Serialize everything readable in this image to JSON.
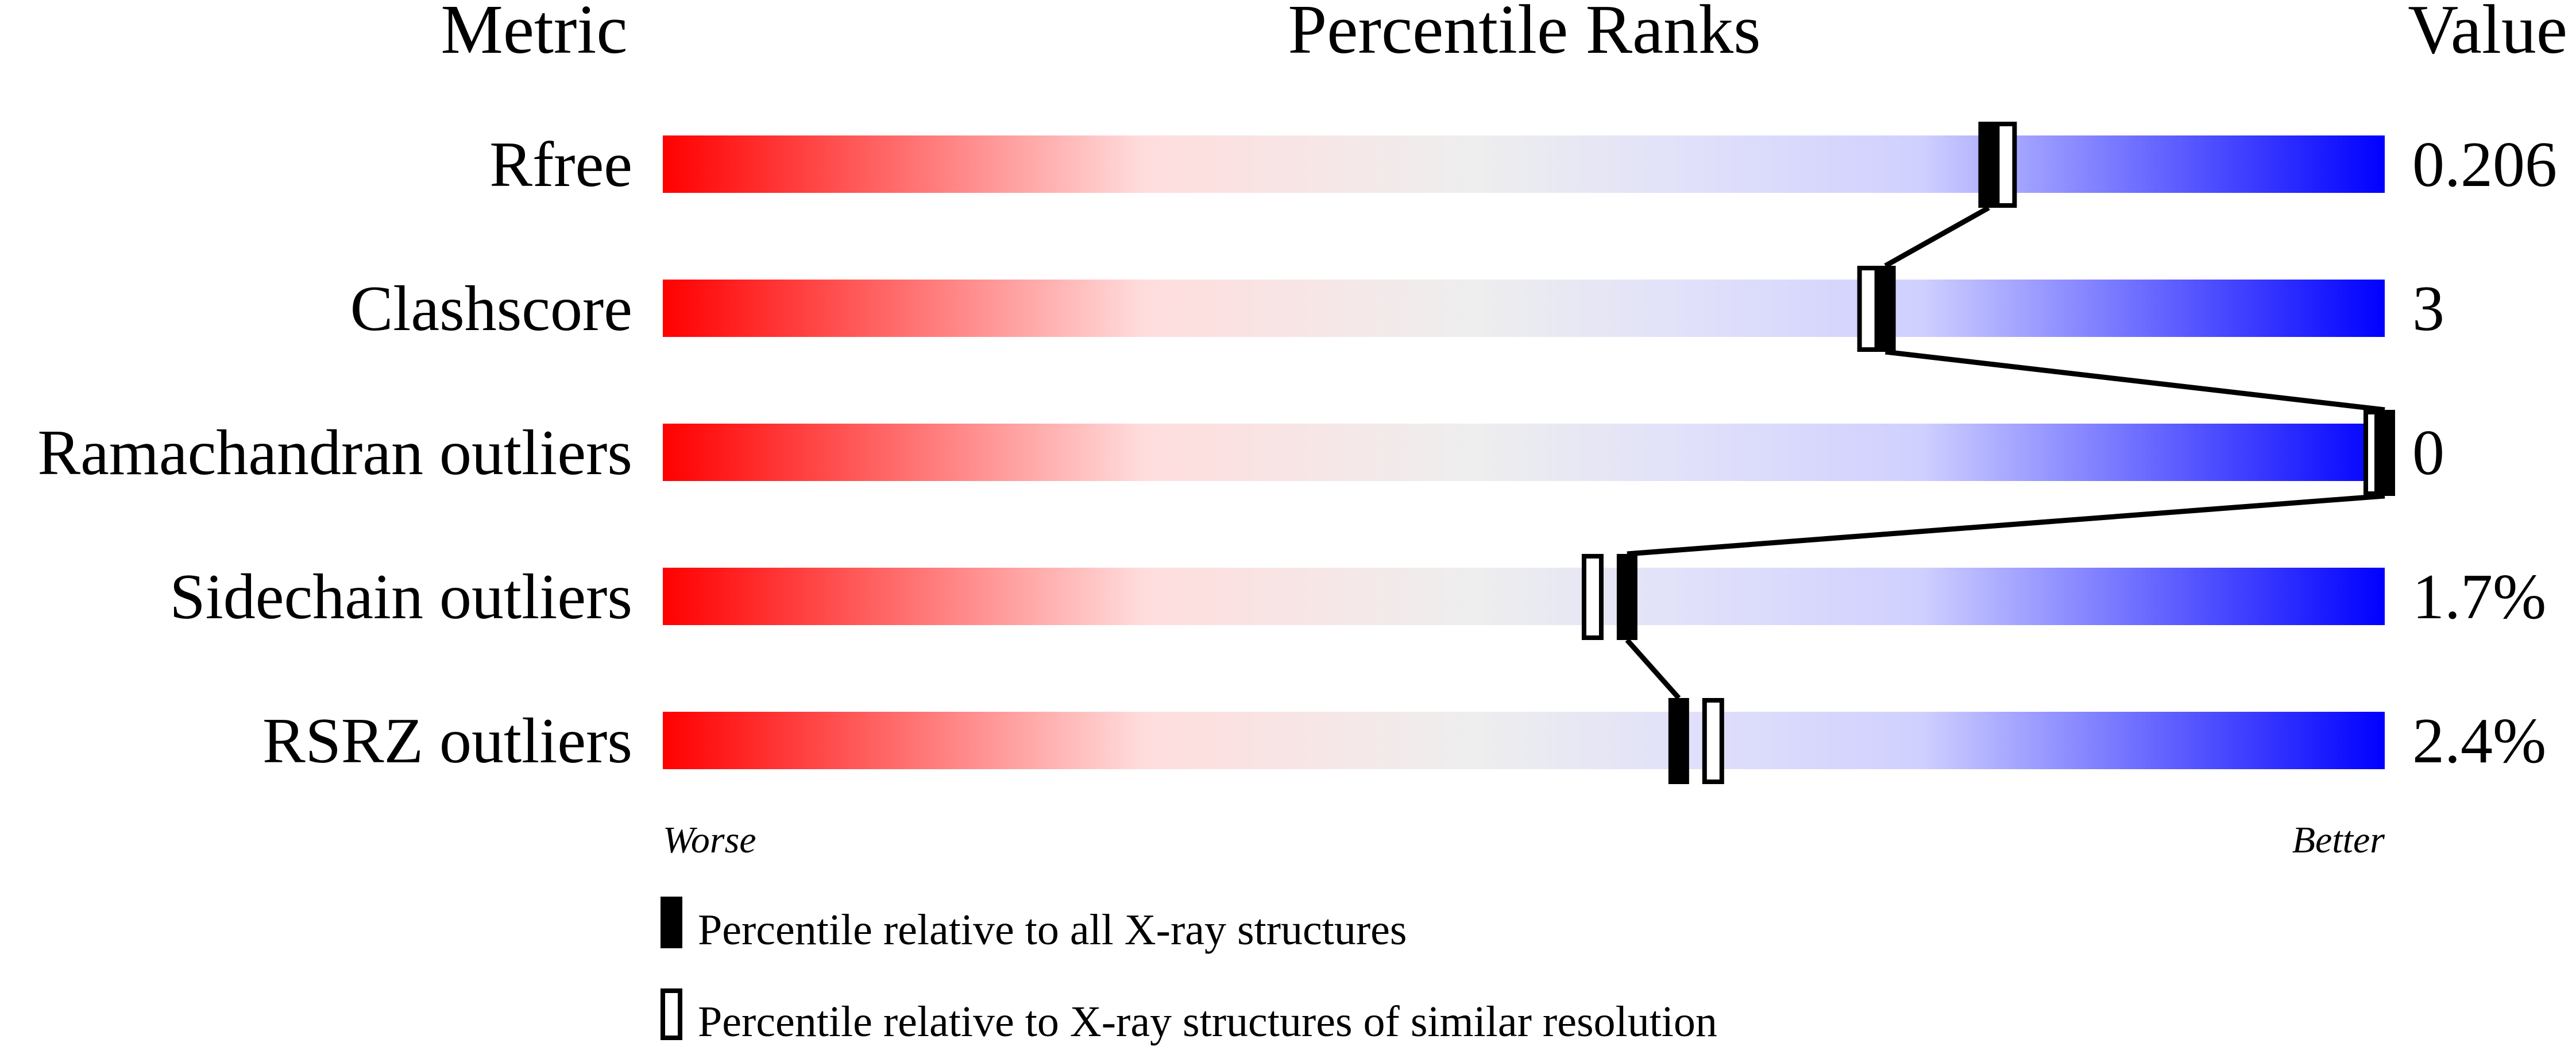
{
  "chart_data": {
    "type": "bar",
    "headers": {
      "metric": "Metric",
      "ranks": "Percentile Ranks",
      "value": "Value"
    },
    "xlim": [
      0,
      100
    ],
    "axis_labels": {
      "left": "Worse",
      "right": "Better"
    },
    "gradient_colors": [
      "#ff0000",
      "#ffdddd",
      "#eeeeee",
      "#ddddff",
      "#0000ff"
    ],
    "metrics": [
      {
        "name": "Rfree",
        "value": "0.206",
        "percentile_all": 77,
        "percentile_similar": 78
      },
      {
        "name": "Clashscore",
        "value": "3",
        "percentile_all": 71,
        "percentile_similar": 70
      },
      {
        "name": "Ramachandran outliers",
        "value": "0",
        "percentile_all": 100,
        "percentile_similar": 100
      },
      {
        "name": "Sidechain outliers",
        "value": "1.7%",
        "percentile_all": 56,
        "percentile_similar": 54
      },
      {
        "name": "RSRZ outliers",
        "value": "2.4%",
        "percentile_all": 59,
        "percentile_similar": 61
      }
    ],
    "legend": [
      {
        "marker": "filled",
        "label": "Percentile relative to all X-ray structures"
      },
      {
        "marker": "hollow",
        "label": "Percentile relative to X-ray structures of similar resolution"
      }
    ]
  }
}
